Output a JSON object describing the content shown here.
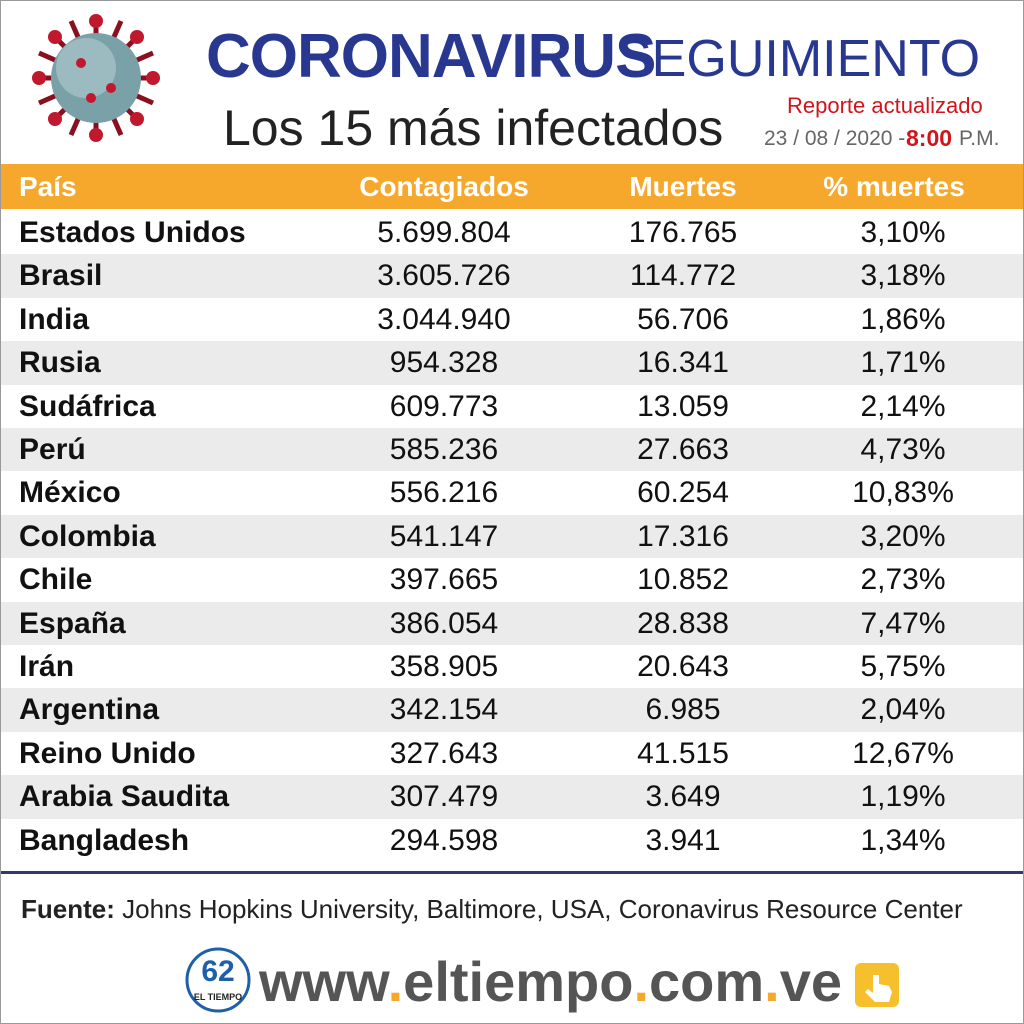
{
  "header": {
    "title_main": "CORONAVIRUS",
    "title_sub": "SEGUIMIENTO",
    "subtitle": "Los 15 más infectados",
    "report_label": "Reporte actualizado",
    "date": "23 / 08 / 2020 -",
    "time": "8:00",
    "ampm": "P.M."
  },
  "table": {
    "columns": [
      "País",
      "Contagiados",
      "Muertes",
      "% muertes"
    ],
    "rows": [
      [
        "Estados Unidos",
        "5.699.804",
        "176.765",
        "3,10%"
      ],
      [
        "Brasil",
        "3.605.726",
        "114.772",
        "3,18%"
      ],
      [
        "India",
        "3.044.940",
        "56.706",
        "1,86%"
      ],
      [
        "Rusia",
        "954.328",
        "16.341",
        "1,71%"
      ],
      [
        "Sudáfrica",
        "609.773",
        "13.059",
        "2,14%"
      ],
      [
        "Perú",
        "585.236",
        "27.663",
        "4,73%"
      ],
      [
        "México",
        "556.216",
        "60.254",
        "10,83%"
      ],
      [
        "Colombia",
        "541.147",
        "17.316",
        "3,20%"
      ],
      [
        "Chile",
        "397.665",
        "10.852",
        "2,73%"
      ],
      [
        "España",
        "386.054",
        "28.838",
        "7,47%"
      ],
      [
        "Irán",
        "358.905",
        "20.643",
        "5,75%"
      ],
      [
        "Argentina",
        "342.154",
        "6.985",
        "2,04%"
      ],
      [
        "Reino Unido",
        "327.643",
        "41.515",
        "12,67%"
      ],
      [
        "Arabia Saudita",
        "307.479",
        "3.649",
        "1,19%"
      ],
      [
        "Bangladesh",
        "294.598",
        "3.941",
        "1,34%"
      ]
    ]
  },
  "footer": {
    "source_label": "Fuente:",
    "source": "Johns Hopkins University, Baltimore, USA, Coronavirus Resource Center",
    "url": "www.eltiempo.com.ve",
    "logo_number": "62",
    "logo_text": "EL TIEMPO"
  }
}
